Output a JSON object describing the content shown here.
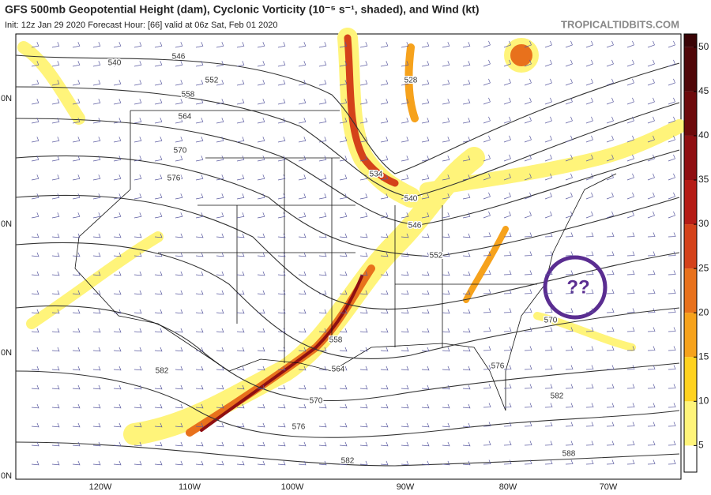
{
  "header": {
    "title": "GFS 500mb Geopotential Height (dam), Cyclonic Vorticity (10⁻⁵ s⁻¹, shaded), and Wind (kt)",
    "subtitle": "Init: 12z Jan 29 2020   Forecast Hour: [66]   valid at 06z Sat, Feb 01 2020",
    "source": "TROPICALTIDBITS.COM"
  },
  "map": {
    "lon_labels": [
      "120W",
      "110W",
      "100W",
      "90W",
      "80W",
      "70W"
    ],
    "lat_labels": [
      "0N",
      "0N",
      "0N",
      "0N"
    ],
    "contour_labels": [
      "540",
      "546",
      "552",
      "558",
      "564",
      "570",
      "576",
      "528",
      "534",
      "540",
      "546",
      "552",
      "558",
      "564",
      "570",
      "576",
      "582",
      "588",
      "582",
      "576",
      "570",
      "582"
    ],
    "annotation": "??"
  },
  "colorbar": {
    "range": [
      2,
      51.5
    ],
    "ticks": [
      5,
      10,
      15,
      20,
      25,
      30,
      35,
      40,
      45,
      50
    ],
    "colors": [
      "#ffffff",
      "#fff47a",
      "#ffd21f",
      "#f6a21c",
      "#e8711c",
      "#d4421a",
      "#b51c16",
      "#8f0f12",
      "#6d0a0c",
      "#500608",
      "#3a0406"
    ]
  }
}
